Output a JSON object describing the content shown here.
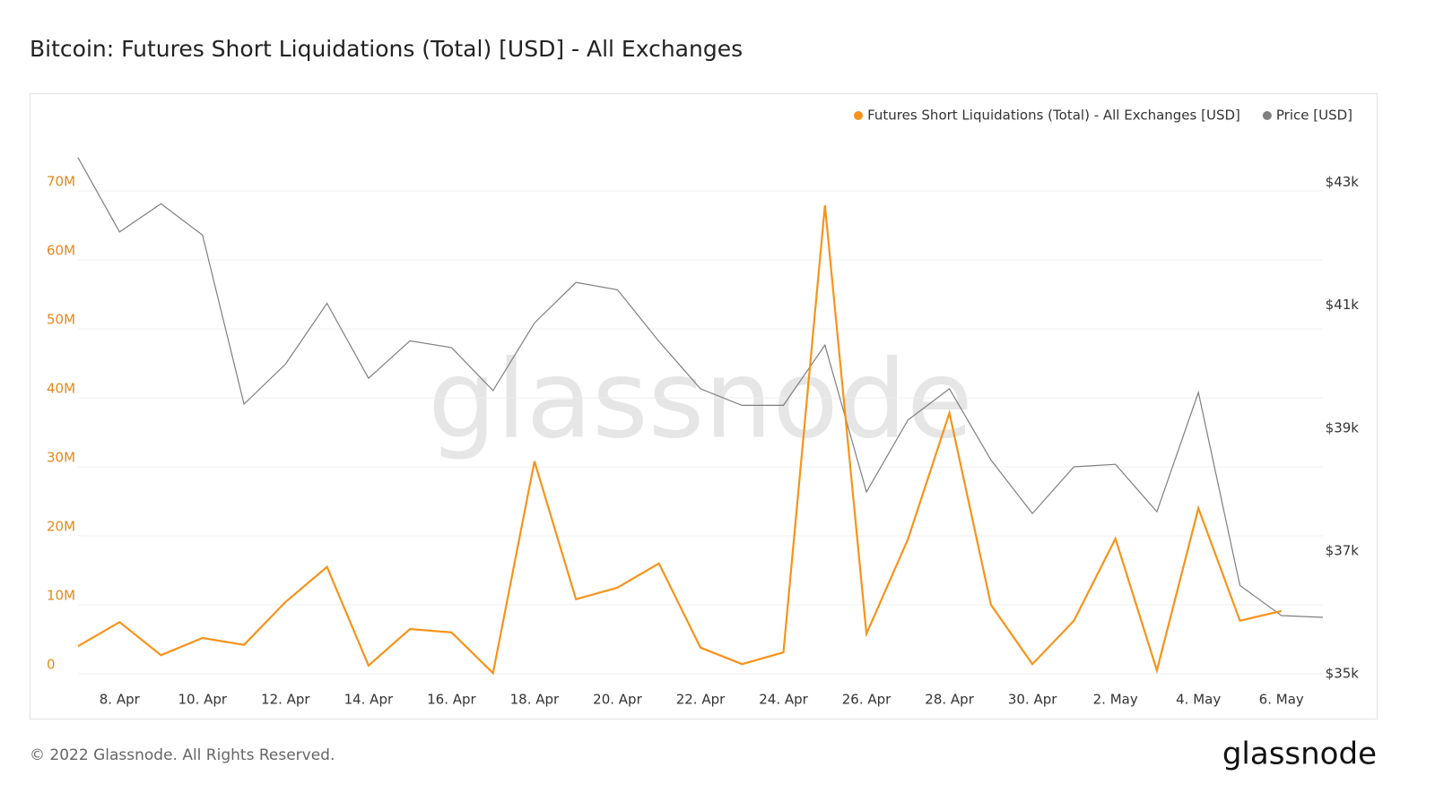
{
  "title": "Bitcoin: Futures Short Liquidations (Total) [USD] - All Exchanges",
  "footer": "© 2022 Glassnode. All Rights Reserved.",
  "logo": "glassnode",
  "chart_data": {
    "type": "line",
    "watermark": "glassnode",
    "legend": "top-right",
    "grid": true,
    "categories": [
      null,
      "8. Apr",
      null,
      "10. Apr",
      null,
      "12. Apr",
      null,
      "14. Apr",
      null,
      "16. Apr",
      null,
      "18. Apr",
      null,
      "20. Apr",
      null,
      "22. Apr",
      null,
      "24. Apr",
      null,
      "26. Apr",
      null,
      "28. Apr",
      null,
      "30. Apr",
      null,
      "2. May",
      null,
      "4. May",
      null,
      "6. May",
      null
    ],
    "ylim": [
      -1000000,
      79000000
    ],
    "yticks": [
      0,
      {
        "value": 10000000,
        "label": "10M"
      },
      {
        "value": 20000000,
        "label": "20M"
      },
      {
        "value": 30000000,
        "label": "30M"
      },
      {
        "value": 40000000,
        "label": "40M"
      },
      {
        "value": 50000000,
        "label": "50M"
      },
      {
        "value": 60000000,
        "label": "60M"
      },
      {
        "value": 70000000,
        "label": "70M"
      }
    ],
    "y2lim": [
      34890,
      43870
    ],
    "y2ticks": [
      {
        "value": 35000,
        "label": "$35k"
      },
      {
        "value": 37000,
        "label": "$37k"
      },
      {
        "value": 39000,
        "label": "$39k"
      },
      {
        "value": 41000,
        "label": "$41k"
      },
      {
        "value": 43000,
        "label": "$43k"
      }
    ],
    "series": [
      {
        "name": "Futures Short Liquidations (Total) - All Exchanges [USD]",
        "color": "#f7931a",
        "values": [
          4000000,
          7500000,
          2700000,
          5200000,
          4200000,
          10400000,
          15500000,
          1200000,
          6500000,
          6000000,
          100000,
          30800000,
          10800000,
          12500000,
          16000000,
          3800000,
          1400000,
          3100000,
          67900000,
          5800000,
          19500000,
          37800000,
          10000000,
          1400000,
          7700000,
          19600000,
          500000,
          24000000,
          7700000,
          9100000,
          null
        ]
      },
      {
        "name": "Price [USD]",
        "color": "#7f7f7f",
        "axis": "y2",
        "values": [
          43400,
          42190,
          42650,
          42140,
          39390,
          40040,
          41030,
          39810,
          40420,
          40310,
          39610,
          40710,
          41370,
          41250,
          40410,
          39640,
          39370,
          39370,
          40350,
          37960,
          39130,
          39640,
          38480,
          37610,
          38370,
          38410,
          37640,
          39580,
          36440,
          35950,
          35920
        ]
      }
    ]
  }
}
